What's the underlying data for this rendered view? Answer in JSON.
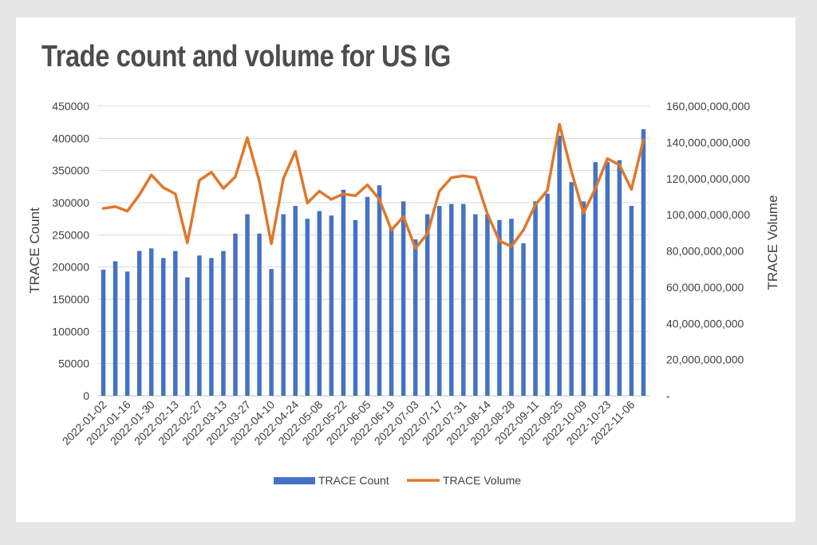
{
  "chart_data": {
    "type": "bar",
    "title": "Trade count and volume for US IG",
    "ylabel": "TRACE Count",
    "y2label": "TRACE Volume",
    "ylim": [
      0,
      450000
    ],
    "y2lim": [
      0,
      160000000000
    ],
    "yticks": [
      "0",
      "50000",
      "100000",
      "150000",
      "200000",
      "250000",
      "300000",
      "350000",
      "400000",
      "450000"
    ],
    "y2ticks": [
      "-",
      "20,000,000,000",
      "40,000,000,000",
      "60,000,000,000",
      "80,000,000,000",
      "100,000,000,000",
      "120,000,000,000",
      "140,000,000,000",
      "160,000,000,000"
    ],
    "xticks": [
      "2022-01-02",
      "2022-01-16",
      "2022-01-30",
      "2022-02-13",
      "2022-02-27",
      "2022-03-13",
      "2022-03-27",
      "2022-04-10",
      "2022-04-24",
      "2022-05-08",
      "2022-05-22",
      "2022-06-05",
      "2022-06-19",
      "2022-07-03",
      "2022-07-17",
      "2022-07-31",
      "2022-08-14",
      "2022-08-28",
      "2022-09-11",
      "2022-09-25",
      "2022-10-09",
      "2022-10-23",
      "2022-11-06"
    ],
    "grid": true,
    "legend_position": "bottom",
    "categories": [
      "2022-01-02",
      "2022-01-09",
      "2022-01-16",
      "2022-01-23",
      "2022-01-30",
      "2022-02-06",
      "2022-02-13",
      "2022-02-20",
      "2022-02-27",
      "2022-03-06",
      "2022-03-13",
      "2022-03-20",
      "2022-03-27",
      "2022-04-03",
      "2022-04-10",
      "2022-04-17",
      "2022-04-24",
      "2022-05-01",
      "2022-05-08",
      "2022-05-15",
      "2022-05-22",
      "2022-05-29",
      "2022-06-05",
      "2022-06-12",
      "2022-06-19",
      "2022-06-26",
      "2022-07-03",
      "2022-07-10",
      "2022-07-17",
      "2022-07-24",
      "2022-07-31",
      "2022-08-07",
      "2022-08-14",
      "2022-08-21",
      "2022-08-28",
      "2022-09-04",
      "2022-09-11",
      "2022-09-18",
      "2022-09-25",
      "2022-10-02",
      "2022-10-09",
      "2022-10-16",
      "2022-10-23",
      "2022-10-30",
      "2022-11-06",
      "2022-11-13"
    ],
    "series": [
      {
        "name": "TRACE Count",
        "type": "bar",
        "axis": "left",
        "color": "#4472c4",
        "values": [
          196000,
          209000,
          193000,
          225000,
          229000,
          214000,
          225000,
          184000,
          218000,
          214000,
          225000,
          252000,
          282000,
          252000,
          197000,
          282000,
          295000,
          275000,
          287000,
          280000,
          320000,
          273000,
          309000,
          327000,
          262000,
          302000,
          243000,
          282000,
          295000,
          298000,
          298000,
          282000,
          282000,
          273000,
          275000,
          237000,
          302000,
          314000,
          404000,
          332000,
          302000,
          363000,
          363000,
          366000,
          295000,
          414000
        ]
      },
      {
        "name": "TRACE Volume",
        "type": "line",
        "axis": "right",
        "color": "#e0782b",
        "values": [
          103500000000,
          104500000000,
          102000000000,
          111000000000,
          122000000000,
          115000000000,
          111500000000,
          84500000000,
          119000000000,
          123500000000,
          114500000000,
          121000000000,
          142500000000,
          118500000000,
          84000000000,
          120000000000,
          135000000000,
          106500000000,
          113000000000,
          108500000000,
          111500000000,
          110500000000,
          116500000000,
          108500000000,
          91500000000,
          99000000000,
          81500000000,
          89500000000,
          113000000000,
          120500000000,
          121500000000,
          120500000000,
          100500000000,
          85500000000,
          82500000000,
          91500000000,
          105500000000,
          113500000000,
          150000000000,
          124000000000,
          101000000000,
          114500000000,
          131000000000,
          127500000000,
          114000000000,
          141500000000
        ]
      }
    ]
  }
}
